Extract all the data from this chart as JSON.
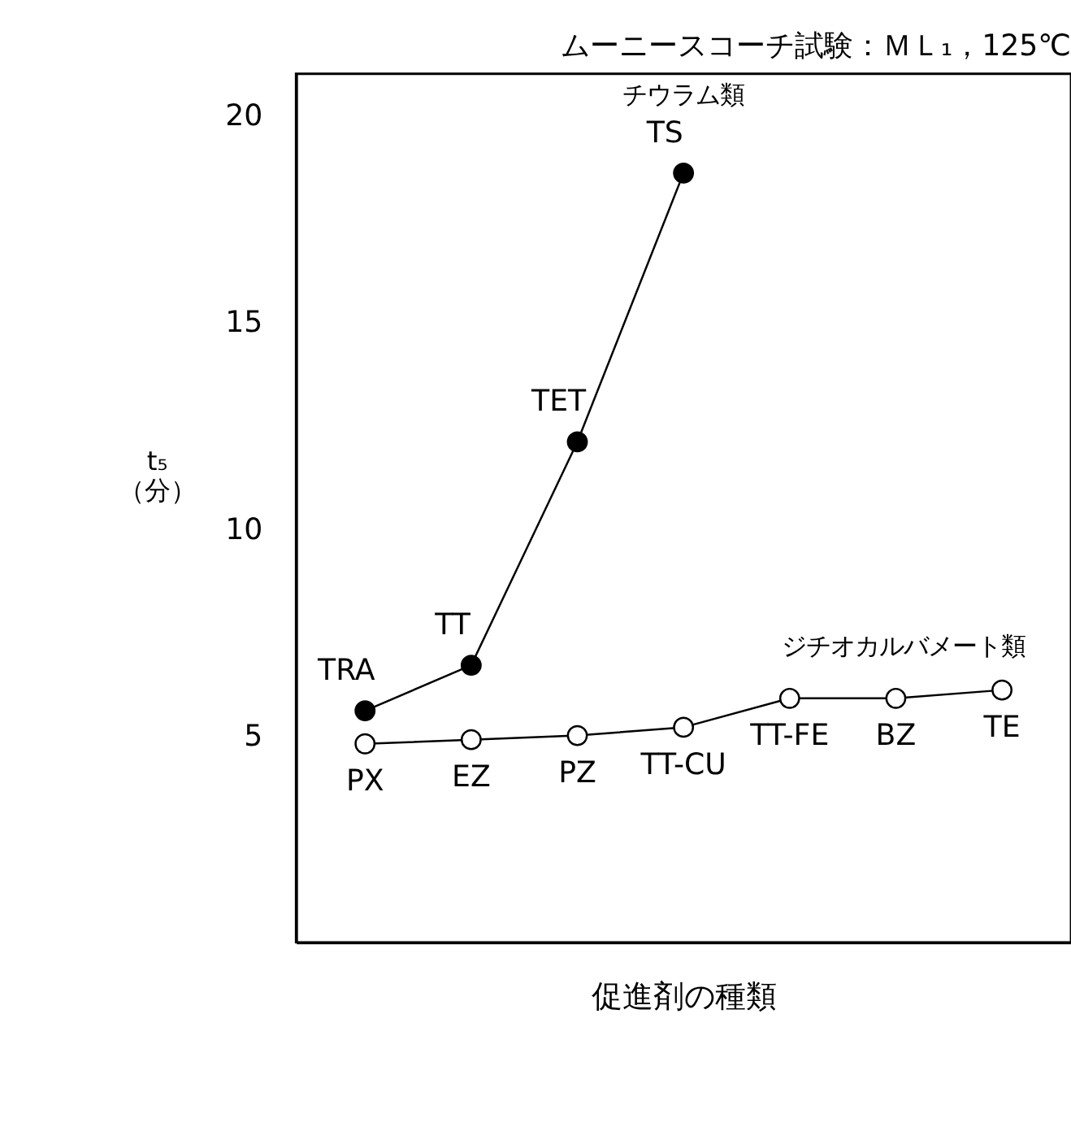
{
  "chart_data": {
    "type": "line",
    "title": "ムーニースコーチ試験：ＭＬ₁，125℃",
    "xlabel": "促進剤の種類",
    "ylabel": "t₅\n（分）",
    "categories": [
      null,
      null,
      null,
      null,
      null,
      null,
      null
    ],
    "series": [
      {
        "name": "チウラム類",
        "color": "#000000",
        "values": [
          5.6,
          6.7,
          12.1,
          18.6,
          null,
          null,
          null
        ],
        "value_labels": [
          "TRA",
          "TT",
          "TET",
          "TS",
          null,
          null,
          null
        ]
      },
      {
        "name": "ジチオカルバメート類",
        "color": "#ffffff",
        "values": [
          4.8,
          4.9,
          5.0,
          5.2,
          5.9,
          5.9,
          6.1
        ],
        "value_labels": [
          "PX",
          "EZ",
          "PZ",
          "TT-CU",
          "TT-FE",
          "BZ",
          "TE"
        ]
      }
    ],
    "ylim": [
      0,
      21
    ],
    "yticks": [
      5,
      10,
      15,
      20
    ],
    "grid": false,
    "marker": "circle",
    "line_style": "solid",
    "tick_labels": "y"
  }
}
